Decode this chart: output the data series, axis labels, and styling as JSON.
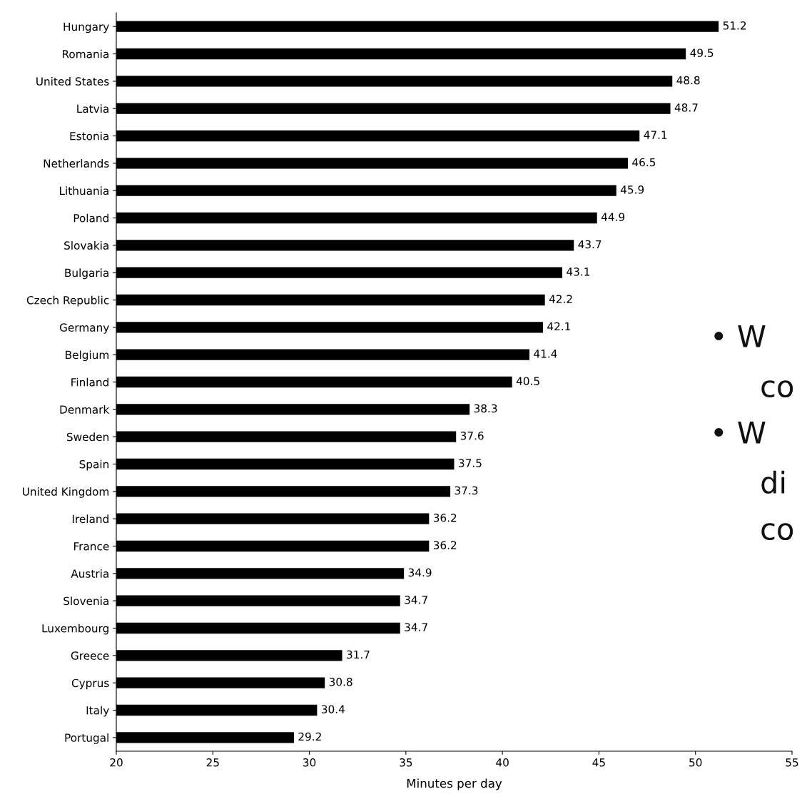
{
  "chart_data": {
    "type": "bar",
    "orientation": "horizontal",
    "xlabel": "Minutes per day",
    "categories": [
      "Hungary",
      "Romania",
      "United States",
      "Latvia",
      "Estonia",
      "Netherlands",
      "Lithuania",
      "Poland",
      "Slovakia",
      "Bulgaria",
      "Czech Republic",
      "Germany",
      "Belgium",
      "Finland",
      "Denmark",
      "Sweden",
      "Spain",
      "United Kingdom",
      "Ireland",
      "France",
      "Austria",
      "Slovenia",
      "Luxembourg",
      "Greece",
      "Cyprus",
      "Italy",
      "Portugal"
    ],
    "values": [
      51.2,
      49.5,
      48.8,
      48.7,
      47.1,
      46.5,
      45.9,
      44.9,
      43.7,
      43.1,
      42.2,
      42.1,
      41.4,
      40.5,
      38.3,
      37.6,
      37.5,
      37.3,
      36.2,
      36.2,
      34.9,
      34.7,
      34.7,
      31.7,
      30.8,
      30.4,
      29.2
    ],
    "color": "#000000",
    "xlim": [
      20,
      55
    ],
    "xticks": [
      20,
      25,
      30,
      35,
      40,
      45,
      50,
      55
    ],
    "data_labels": true,
    "grid": false,
    "legend": false,
    "annotations": [
      "• W",
      "co",
      "• W",
      "di",
      "co"
    ]
  }
}
